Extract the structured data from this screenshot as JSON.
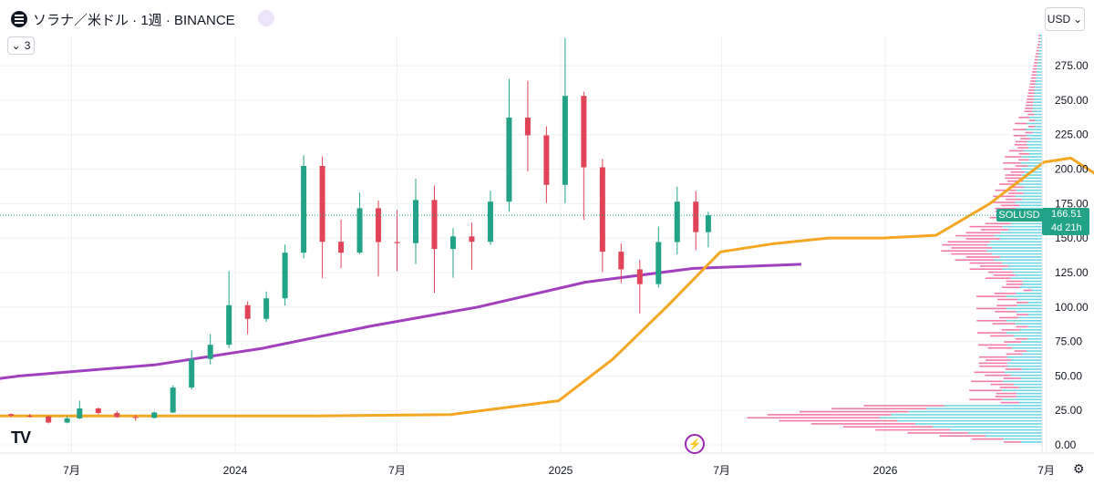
{
  "header": {
    "title": "ソラナ／米ドル · 1週 · BINANCE",
    "indicator_count": "3",
    "currency": "USD"
  },
  "price_tag": {
    "symbol": "SOLUSD",
    "price": "166.51",
    "countdown": "4d 21h"
  },
  "logo_text": "TV",
  "colors": {
    "up": "#22a387",
    "down": "#e04456",
    "ma_fast": "#f5a623",
    "ma_slow": "#a23fbf",
    "vp_up": "#6fd6e2",
    "vp_down": "#f07aa8",
    "grid": "#eef0f3"
  },
  "chart_data": {
    "type": "candlestick",
    "y_axis": {
      "min": 0,
      "max": 300,
      "ticks": [
        0,
        25,
        50,
        75,
        100,
        125,
        150,
        175,
        200,
        225,
        250,
        275
      ],
      "tick_labels": [
        "0.00",
        "25.00",
        "50.00",
        "75.00",
        "100.00",
        "125.00",
        "150.00",
        "175.00",
        "200.00",
        "225.00",
        "250.00",
        "275.00"
      ]
    },
    "x_axis": {
      "ticks": [
        "2023-07-01",
        "2024-01-01",
        "2024-07-01",
        "2025-01-01",
        "2025-07-01",
        "2026-01-01",
        "2026-07-01"
      ],
      "tick_labels": [
        "7月",
        "2024",
        "7月",
        "2025",
        "7月",
        "2026",
        "7月"
      ]
    },
    "last_price": 166.51,
    "candles": [
      [
        "2023-04-24",
        22.3,
        22.9,
        20.2,
        21.2
      ],
      [
        "2023-05-15",
        21.2,
        22.4,
        19.8,
        20.6
      ],
      [
        "2023-06-05",
        20.6,
        21.3,
        15.6,
        16.2
      ],
      [
        "2023-06-26",
        16.2,
        20.9,
        15.6,
        19.2
      ],
      [
        "2023-07-10",
        19.2,
        32.1,
        18.8,
        26.4
      ],
      [
        "2023-07-31",
        26.4,
        27.1,
        22.2,
        23.1
      ],
      [
        "2023-08-21",
        23.1,
        24.6,
        19.6,
        20.2
      ],
      [
        "2023-09-11",
        20.2,
        21.9,
        17.3,
        19.6
      ],
      [
        "2023-10-02",
        19.6,
        24.3,
        19.1,
        23.5
      ],
      [
        "2023-10-23",
        23.5,
        43.1,
        23.1,
        41.6
      ],
      [
        "2023-11-13",
        41.6,
        68.6,
        40.1,
        62.3
      ],
      [
        "2023-12-04",
        62.3,
        80.2,
        58.3,
        72.6
      ],
      [
        "2023-12-25",
        72.6,
        126.1,
        70.2,
        101.3
      ],
      [
        "2024-01-15",
        101.3,
        104.1,
        80.3,
        91.4
      ],
      [
        "2024-02-05",
        91.4,
        111.2,
        89.1,
        106.3
      ],
      [
        "2024-02-26",
        106.3,
        145.2,
        101.1,
        139.4
      ],
      [
        "2024-03-18",
        139.4,
        210.1,
        135.2,
        202.3
      ],
      [
        "2024-04-08",
        202.3,
        209.2,
        121.1,
        147.3
      ],
      [
        "2024-04-29",
        147.3,
        163.3,
        128.2,
        139.4
      ],
      [
        "2024-05-20",
        139.4,
        183.1,
        138.3,
        171.6
      ],
      [
        "2024-06-10",
        171.6,
        177.2,
        122.2,
        147.1
      ],
      [
        "2024-07-01",
        147.1,
        170.4,
        126.1,
        146.3
      ],
      [
        "2024-07-22",
        146.3,
        193.1,
        131.2,
        177.6
      ],
      [
        "2024-08-12",
        177.6,
        188.2,
        110.3,
        142.1
      ],
      [
        "2024-09-02",
        142.1,
        157.1,
        121.2,
        151.2
      ],
      [
        "2024-09-23",
        151.2,
        161.2,
        127.1,
        147.3
      ],
      [
        "2024-10-14",
        147.3,
        184.2,
        145.1,
        176.4
      ],
      [
        "2024-11-04",
        176.4,
        265.3,
        169.1,
        237.4
      ],
      [
        "2024-11-25",
        237.4,
        264.1,
        198.2,
        224.5
      ],
      [
        "2024-12-16",
        224.5,
        231.1,
        175.4,
        188.6
      ],
      [
        "2025-01-06",
        188.6,
        295.2,
        175.2,
        253.1
      ],
      [
        "2025-01-27",
        253.1,
        256.1,
        163.2,
        201.3
      ],
      [
        "2025-02-17",
        201.3,
        207.4,
        125.3,
        140.1
      ],
      [
        "2025-03-10",
        140.1,
        146.1,
        117.2,
        127.3
      ],
      [
        "2025-03-31",
        127.3,
        134.2,
        95.3,
        116.6
      ],
      [
        "2025-04-21",
        116.6,
        158.4,
        114.2,
        147.1
      ],
      [
        "2025-05-12",
        147.1,
        187.2,
        138.3,
        176.4
      ],
      [
        "2025-06-02",
        176.4,
        184.1,
        141.2,
        154.3
      ],
      [
        "2025-06-16",
        154.3,
        169.1,
        143.2,
        166.51
      ]
    ],
    "ma_fast": [
      [
        -30,
        21
      ],
      [
        3,
        21
      ],
      [
        8,
        22
      ],
      [
        12,
        32
      ],
      [
        14,
        62
      ],
      [
        16,
        100
      ],
      [
        18,
        140
      ],
      [
        20,
        146
      ],
      [
        22,
        150
      ],
      [
        24,
        150
      ],
      [
        26,
        152
      ],
      [
        28,
        175
      ],
      [
        29,
        190
      ],
      [
        30,
        205
      ],
      [
        31,
        208
      ],
      [
        33,
        183
      ],
      [
        36,
        166
      ],
      [
        38,
        163
      ]
    ],
    "ma_slow": [
      [
        -30,
        72
      ],
      [
        -25,
        71
      ],
      [
        -22,
        65
      ],
      [
        -19,
        50
      ],
      [
        -16,
        41
      ],
      [
        -12,
        40
      ],
      [
        -8,
        50
      ],
      [
        -3,
        58
      ],
      [
        1,
        70
      ],
      [
        5,
        86
      ],
      [
        9,
        100
      ],
      [
        13,
        118
      ],
      [
        17,
        128
      ],
      [
        21,
        131
      ]
    ],
    "volume_profile_scale": 190
  }
}
